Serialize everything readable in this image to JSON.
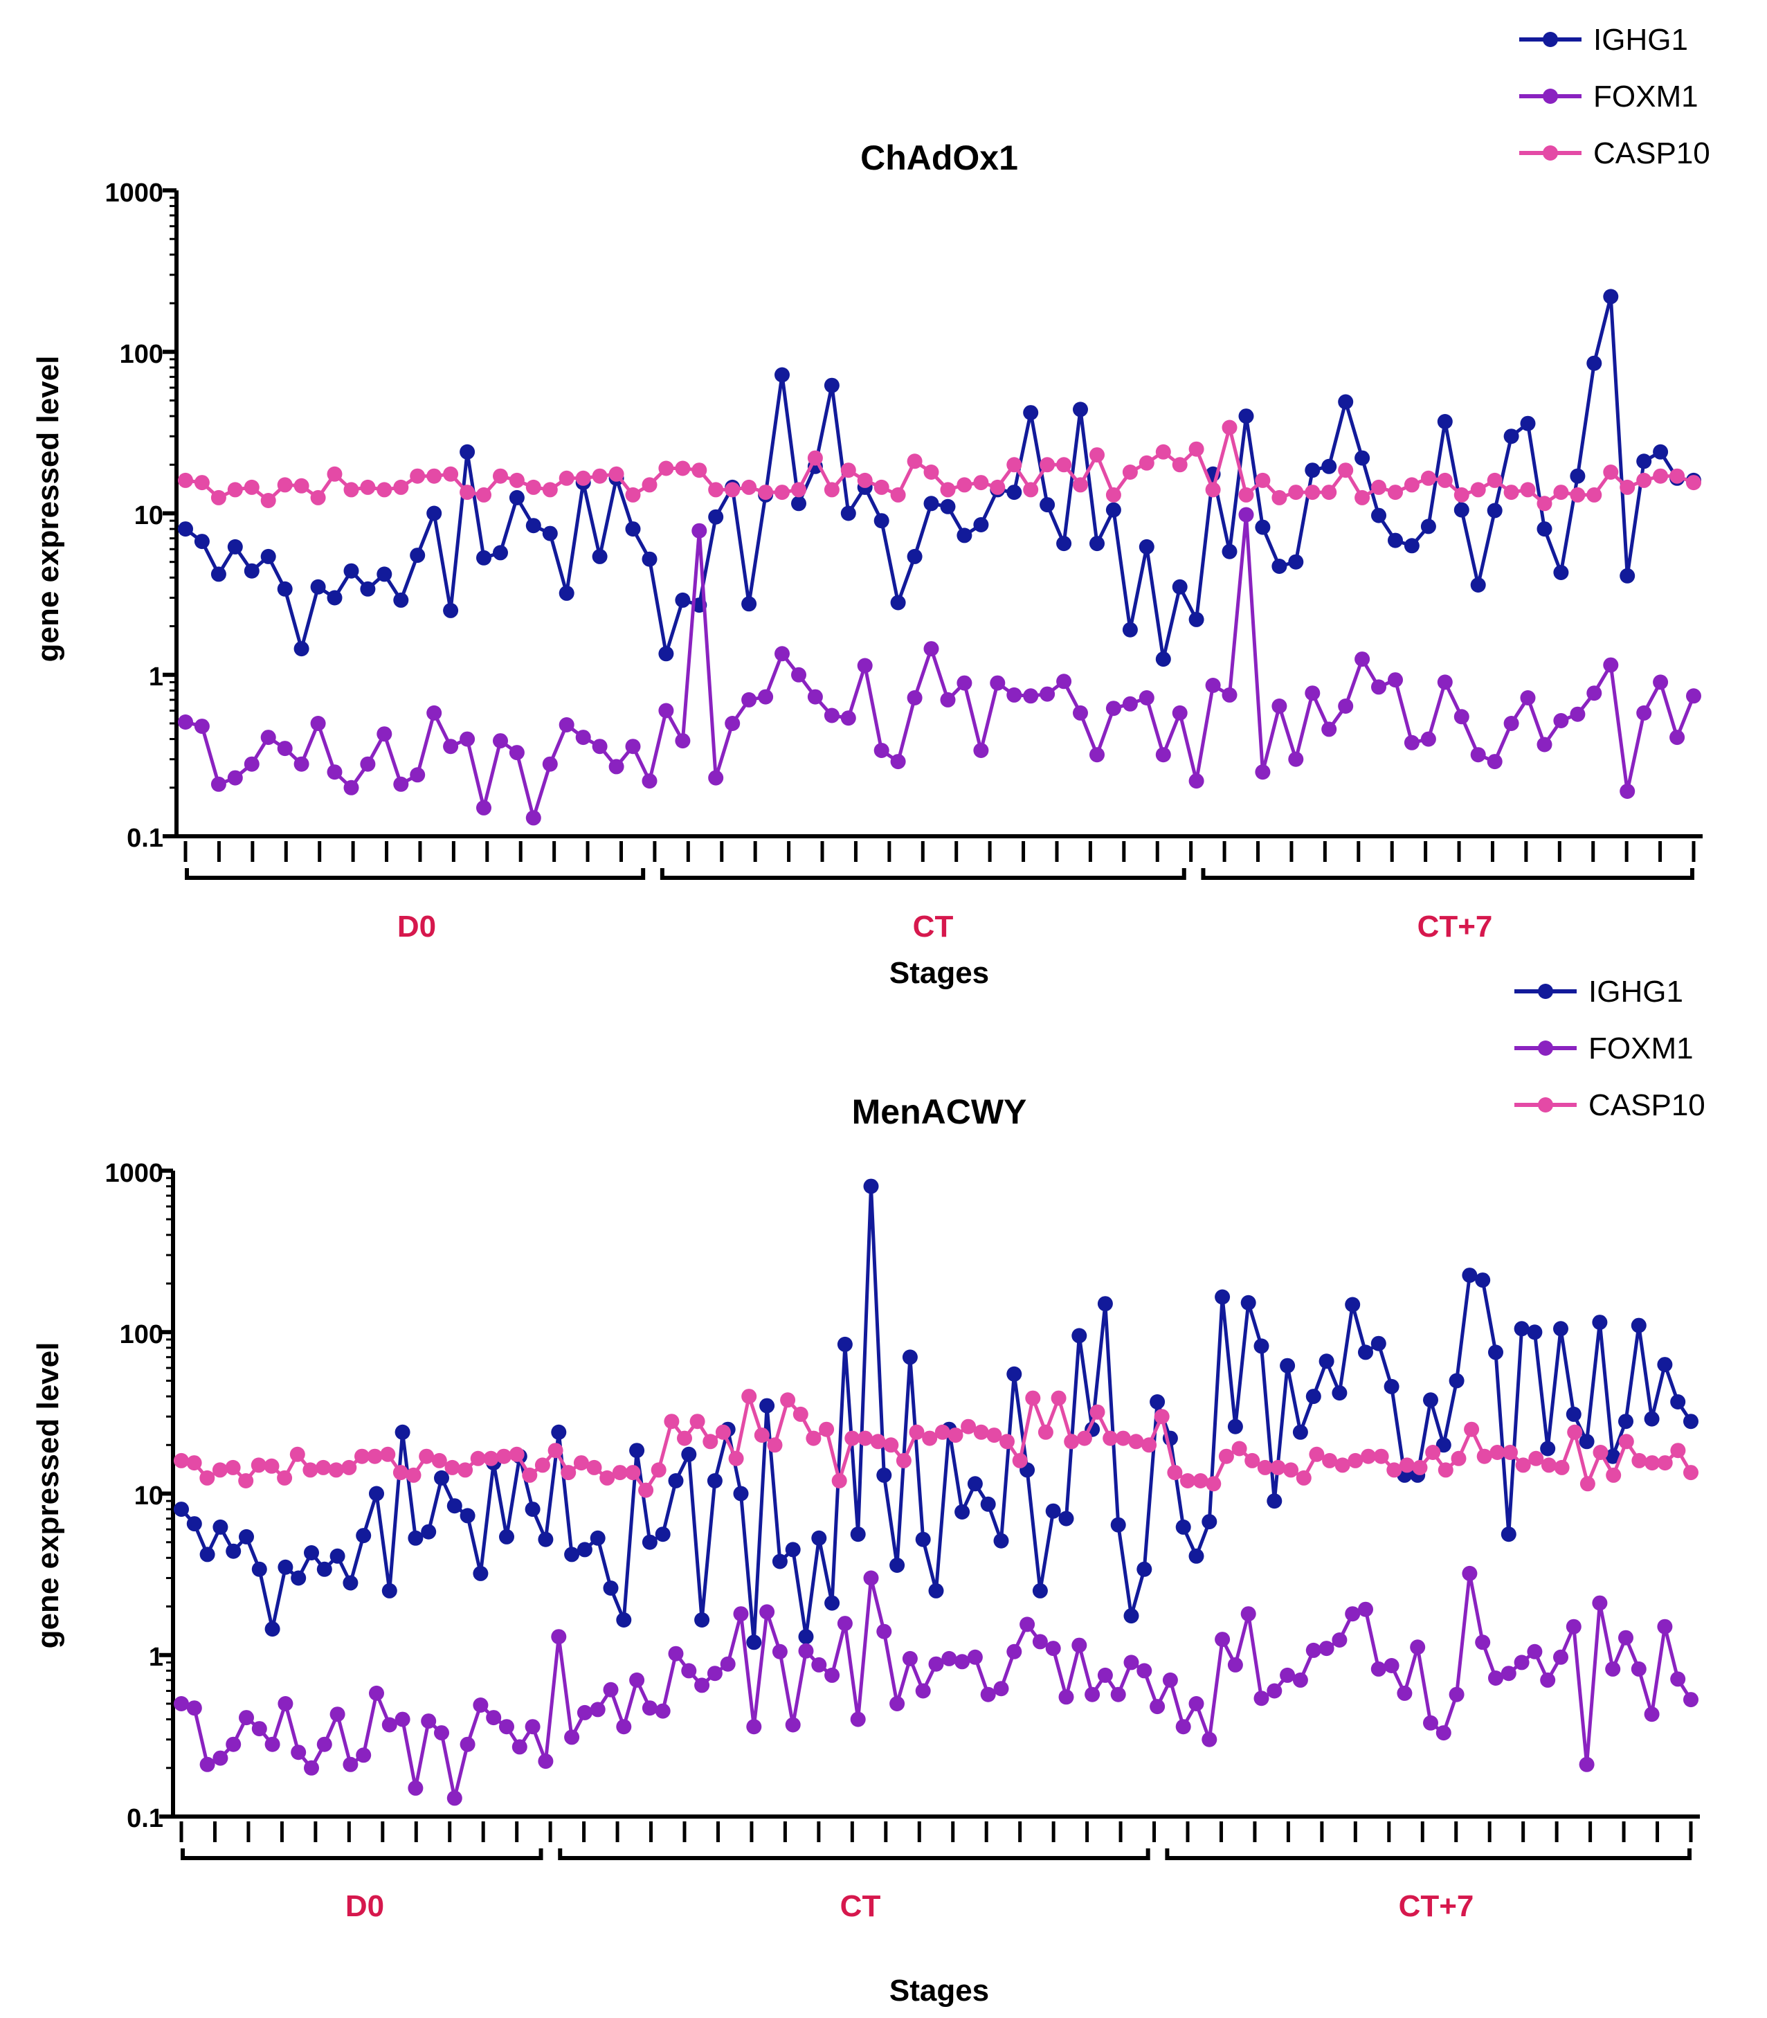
{
  "chart_data": [
    {
      "type": "line",
      "title": "ChAdOx1",
      "xlabel": "Stages",
      "ylabel": "gene expressed level",
      "yscale": "log",
      "ylim": [
        0.1,
        1000
      ],
      "yticks": [
        "0.1",
        "1",
        "10",
        "100",
        "1000"
      ],
      "legend_position": "top-right",
      "groups": [
        {
          "label": "D0",
          "start": 0,
          "end": 28
        },
        {
          "label": "CT",
          "start": 29,
          "end": 61
        },
        {
          "label": "CT+7",
          "start": 62,
          "end": 92
        }
      ],
      "group_color": "#d6184d",
      "series": [
        {
          "name": "IGHG1",
          "color": "#121a9a",
          "values": [
            8,
            6.7,
            4.2,
            6.2,
            4.4,
            5.4,
            3.4,
            1.45,
            3.5,
            3,
            4.4,
            3.4,
            4.2,
            2.9,
            5.5,
            10,
            2.5,
            24,
            5.3,
            5.7,
            12.5,
            8.4,
            7.5,
            3.2,
            15.5,
            5.4,
            16.5,
            8,
            5.2,
            1.35,
            2.9,
            2.7,
            9.5,
            14.5,
            2.75,
            13,
            72,
            11.5,
            19.5,
            62,
            10,
            14.5,
            9,
            2.8,
            5.4,
            11.5,
            11,
            7.3,
            8.5,
            14,
            13.5,
            42,
            11.3,
            6.5,
            44,
            6.5,
            10.5,
            1.9,
            6.2,
            1.25,
            3.5,
            2.2,
            17.5,
            5.8,
            40,
            8.2,
            4.7,
            5,
            18.5,
            19.5,
            49,
            22,
            9.7,
            6.8,
            6.3,
            8.3,
            37,
            10.5,
            3.6,
            10.4,
            30,
            36,
            8,
            4.3,
            17,
            85,
            220,
            4.1,
            21,
            24,
            16.5,
            16
          ]
        },
        {
          "name": "FOXM1",
          "color": "#8a22c0",
          "values": [
            0.51,
            0.48,
            0.21,
            0.23,
            0.28,
            0.41,
            0.35,
            0.28,
            0.5,
            0.25,
            0.2,
            0.28,
            0.43,
            0.21,
            0.24,
            0.58,
            0.36,
            0.4,
            0.15,
            0.39,
            0.33,
            0.13,
            0.28,
            0.49,
            0.41,
            0.36,
            0.27,
            0.36,
            0.22,
            0.6,
            0.39,
            7.8,
            0.23,
            0.5,
            0.7,
            0.73,
            1.35,
            1,
            0.73,
            0.56,
            0.54,
            1.14,
            0.34,
            0.29,
            0.72,
            1.45,
            0.7,
            0.89,
            0.34,
            0.89,
            0.75,
            0.74,
            0.76,
            0.91,
            0.58,
            0.32,
            0.62,
            0.66,
            0.72,
            0.32,
            0.58,
            0.22,
            0.86,
            0.75,
            9.8,
            0.25,
            0.64,
            0.3,
            0.77,
            0.46,
            0.64,
            1.25,
            0.84,
            0.93,
            0.38,
            0.4,
            0.9,
            0.55,
            0.32,
            0.29,
            0.5,
            0.72,
            0.37,
            0.52,
            0.57,
            0.77,
            1.15,
            0.19,
            0.58,
            0.9,
            0.41,
            0.74
          ]
        },
        {
          "name": "CASP10",
          "color": "#e44aa6",
          "values": [
            16,
            15.5,
            12.5,
            14,
            14.5,
            12,
            15,
            14.8,
            12.5,
            17.5,
            14,
            14.5,
            14,
            14.5,
            17,
            17,
            17.5,
            13.5,
            13,
            17,
            16,
            14.5,
            14,
            16.5,
            16.5,
            17,
            17.5,
            13,
            15,
            19,
            19,
            18.5,
            14,
            14,
            14.5,
            13.5,
            13.5,
            14,
            22,
            14,
            18.5,
            16,
            14.5,
            13,
            21,
            18,
            14,
            15,
            15.5,
            14.5,
            20,
            14,
            20,
            20,
            15,
            23,
            13,
            18,
            20.5,
            24,
            20,
            25,
            14,
            34,
            13,
            16,
            12.5,
            13.5,
            13.5,
            13.5,
            18.5,
            12.5,
            14.5,
            13.5,
            15,
            16.5,
            16,
            13,
            14,
            16,
            13.5,
            14,
            11.5,
            13.5,
            13,
            13,
            18,
            14.5,
            16,
            17,
            17,
            15.5
          ]
        }
      ]
    },
    {
      "type": "line",
      "title": "MenACWY",
      "xlabel": "Stages",
      "ylabel": "gene expressed level",
      "yscale": "log",
      "ylim": [
        0.1,
        1000
      ],
      "yticks": [
        "0.1",
        "1",
        "10",
        "100",
        "1000"
      ],
      "legend_position": "top-right",
      "groups": [
        {
          "label": "D0",
          "start": 0,
          "end": 22
        },
        {
          "label": "CT",
          "start": 23,
          "end": 59
        },
        {
          "label": "CT+7",
          "start": 60,
          "end": 92
        }
      ],
      "group_color": "#d6184d",
      "series": [
        {
          "name": "IGHG1",
          "color": "#121a9a",
          "values": [
            8,
            6.5,
            4.2,
            6.2,
            4.4,
            5.4,
            3.4,
            1.45,
            3.5,
            3,
            4.3,
            3.4,
            4.1,
            2.8,
            5.5,
            10,
            2.5,
            24,
            5.3,
            5.8,
            12.5,
            8.4,
            7.3,
            3.2,
            15.5,
            5.4,
            17,
            8,
            5.2,
            24,
            4.2,
            4.5,
            5.3,
            2.6,
            1.65,
            18.5,
            5,
            5.6,
            12,
            17.5,
            1.65,
            12,
            25,
            10,
            1.2,
            35,
            3.8,
            4.5,
            1.3,
            5.3,
            2.1,
            84,
            5.6,
            800,
            13,
            3.6,
            70,
            5.2,
            2.5,
            25,
            7.7,
            11.5,
            8.6,
            5.1,
            55,
            14,
            2.5,
            7.8,
            7,
            95,
            25,
            150,
            6.4,
            1.75,
            3.4,
            37,
            22,
            6.2,
            4.1,
            6.7,
            165,
            26,
            152,
            82,
            9,
            62,
            24,
            40,
            66,
            42,
            148,
            75,
            85,
            46,
            13,
            13,
            38,
            20,
            50,
            225,
            210,
            75,
            5.6,
            105,
            100,
            19,
            105,
            31,
            21,
            115,
            17,
            28,
            110,
            29,
            63,
            37,
            28
          ]
        },
        {
          "name": "FOXM1",
          "color": "#8a22c0",
          "values": [
            0.5,
            0.47,
            0.21,
            0.23,
            0.28,
            0.41,
            0.35,
            0.28,
            0.5,
            0.25,
            0.2,
            0.28,
            0.43,
            0.21,
            0.24,
            0.58,
            0.37,
            0.4,
            0.15,
            0.39,
            0.33,
            0.13,
            0.28,
            0.49,
            0.41,
            0.36,
            0.27,
            0.36,
            0.22,
            1.3,
            0.31,
            0.44,
            0.46,
            0.61,
            0.36,
            0.7,
            0.47,
            0.45,
            1.02,
            0.8,
            0.65,
            0.77,
            0.88,
            1.8,
            0.36,
            1.85,
            1.05,
            0.37,
            1.06,
            0.87,
            0.75,
            1.57,
            0.4,
            3,
            1.4,
            0.5,
            0.95,
            0.6,
            0.88,
            0.95,
            0.91,
            0.97,
            0.57,
            0.62,
            1.05,
            1.55,
            1.21,
            1.1,
            0.55,
            1.15,
            0.57,
            0.75,
            0.57,
            0.9,
            0.8,
            0.48,
            0.7,
            0.36,
            0.5,
            0.3,
            1.25,
            0.87,
            1.8,
            0.54,
            0.6,
            0.75,
            0.7,
            1.07,
            1.1,
            1.24,
            1.8,
            1.92,
            0.82,
            0.86,
            0.58,
            1.12,
            0.38,
            0.33,
            0.57,
            3.2,
            1.2,
            0.72,
            0.77,
            0.9,
            1.05,
            0.7,
            0.97,
            1.5,
            0.21,
            2.1,
            0.82,
            1.28,
            0.82,
            0.43,
            1.5,
            0.71,
            0.53
          ]
        },
        {
          "name": "CASP10",
          "color": "#e44aa6",
          "values": [
            16,
            15.5,
            12.5,
            14,
            14.5,
            12,
            15,
            14.8,
            12.5,
            17.5,
            14,
            14.5,
            14,
            14.5,
            17,
            17,
            17.5,
            13.5,
            13,
            17,
            16,
            14.5,
            14,
            16.5,
            16.5,
            17,
            17.5,
            13,
            15,
            18.5,
            13.5,
            15.5,
            14.5,
            12.5,
            13.5,
            13.5,
            10.5,
            14,
            28,
            22,
            28,
            21,
            24,
            16.5,
            40,
            23,
            20,
            38,
            31,
            22,
            25,
            12,
            22,
            22,
            21,
            20,
            16,
            24,
            22,
            24,
            23,
            26,
            24,
            23,
            21,
            16,
            39,
            24,
            39,
            21,
            22,
            32,
            22,
            22,
            21,
            20,
            30,
            13.5,
            12,
            12,
            11.5,
            17,
            19,
            16,
            14.5,
            14.5,
            14,
            12.5,
            17.5,
            16,
            15,
            16,
            17,
            17,
            14,
            15,
            14.5,
            18,
            14,
            16.5,
            25,
            17,
            18,
            18,
            15,
            16.5,
            15,
            14.5,
            24,
            11.5,
            18,
            13,
            21,
            16,
            15.5,
            15.5,
            18.5,
            13.5
          ]
        }
      ]
    }
  ]
}
